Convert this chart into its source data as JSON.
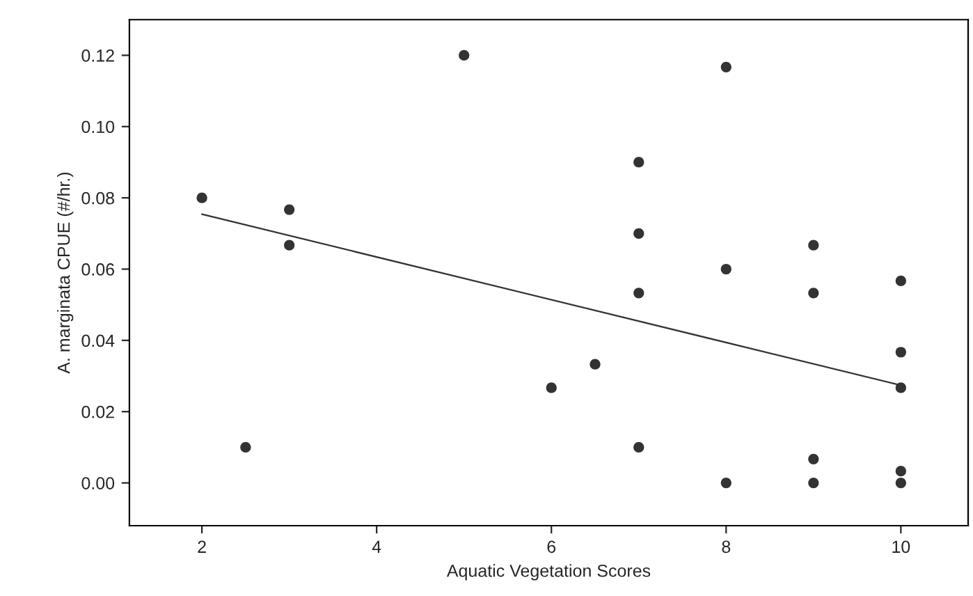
{
  "chart_data": {
    "type": "scatter",
    "xlabel": "Aquatic Vegetation Scores",
    "ylabel": "A. marginata CPUE (#/hr.)",
    "xlim": [
      1.17,
      10.77
    ],
    "ylim": [
      -0.012,
      0.13
    ],
    "xticks": [
      2,
      4,
      6,
      8,
      10
    ],
    "yticks": [
      {
        "value": 0,
        "label": "0.00"
      },
      {
        "value": 0.02,
        "label": "0.02"
      },
      {
        "value": 0.04,
        "label": "0.04"
      },
      {
        "value": 0.06,
        "label": "0.06"
      },
      {
        "value": 0.08,
        "label": "0.08"
      },
      {
        "value": 0.1,
        "label": "0.10"
      },
      {
        "value": 0.12,
        "label": "0.12"
      }
    ],
    "grid": false,
    "marker": "circle",
    "series": [
      {
        "color": "#333333",
        "x": [
          2,
          2.5,
          3,
          3,
          5,
          6,
          6.5,
          7,
          7,
          7,
          7,
          8,
          8,
          8,
          9,
          9,
          9,
          9,
          10,
          10,
          10,
          10,
          10
        ],
        "values": [
          0.08,
          0.01,
          0.0767,
          0.0667,
          0.12,
          0.0267,
          0.0333,
          0.09,
          0.07,
          0.0533,
          0.01,
          0.1167,
          0.06,
          0,
          0.0667,
          0.0533,
          0.0067,
          0,
          0.0567,
          0.0367,
          0.0267,
          0.0033,
          0
        ]
      },
      {
        "type": "line",
        "color": "#333333",
        "x": [
          2,
          10
        ],
        "values": [
          0.0754,
          0.0274
        ],
        "line_style": "solid",
        "marker": "none"
      }
    ]
  }
}
